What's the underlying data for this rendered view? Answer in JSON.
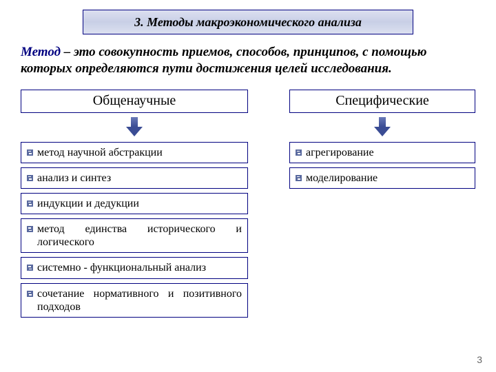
{
  "title": "3. Методы макроэкономического анализа",
  "definition_term": "Метод",
  "definition_rest": " – это совокупность приемов, способов, принципов, с помощью которых определяются пути достижения целей исследования.",
  "left": {
    "header": "Общенаучные",
    "items": [
      "метод научной абстракции",
      "анализ и синтез",
      "индукции и дедукции",
      "метод единства исторического и логического",
      "системно - функциональный анализ",
      "сочетание нормативного и позитивного подходов"
    ]
  },
  "right": {
    "header": "Специфические",
    "items": [
      "агрегирование",
      "моделирование"
    ]
  },
  "border_color": "#000080",
  "arrow_color": "#3a4c94",
  "page_number": "3"
}
